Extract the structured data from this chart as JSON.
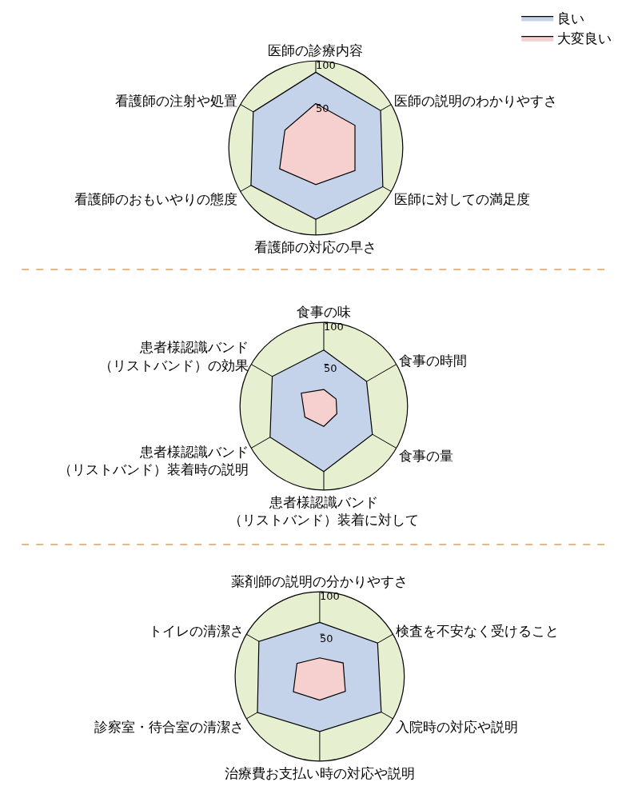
{
  "chart_data": [
    {
      "type": "radar",
      "categories": [
        "医師の診療内容",
        "医師の説明のわかりやすさ",
        "医師に対しての満足度",
        "看護師の対応の早さ",
        "看護師のおもいやりの態度",
        "看護師の注射や処置"
      ],
      "ylim": [
        0,
        100
      ],
      "yticks": [
        50,
        100
      ],
      "legend": "top right",
      "series": [
        {
          "name": "良い",
          "color": "#c5d3ea",
          "values": [
            87,
            86,
            89,
            82,
            86,
            83
          ]
        },
        {
          "name": "大変良い",
          "color": "#f6cfcf",
          "values": [
            51,
            52,
            52,
            42,
            48,
            41
          ]
        }
      ]
    },
    {
      "type": "radar",
      "categories": [
        "食事の味",
        "食事の時間",
        "食事の量",
        "患者様認識バンド（リストバンド）装着に対して",
        "患者様認識バンド（リストバンド）装着時の説明",
        "患者様認識バンド（リストバンド）の効果"
      ],
      "ylim": [
        0,
        100
      ],
      "yticks": [
        50,
        100
      ],
      "series": [
        {
          "color": "#c5d3ea",
          "values": [
            67,
            59,
            67,
            78,
            74,
            71
          ]
        },
        {
          "color": "#f6cfcf",
          "values": [
            20,
            17,
            18,
            24,
            26,
            31
          ]
        }
      ]
    },
    {
      "type": "radar",
      "categories": [
        "薬剤師の説明の分かりやすさ",
        "検査を不安なく受けること",
        "入院時の対応や説明",
        "治療費お支払い時の対応や説明",
        "診察室・待合室の清潔さ",
        "トイレの清潔さ"
      ],
      "ylim": [
        0,
        100
      ],
      "yticks": [
        50,
        100
      ],
      "series": [
        {
          "color": "#c5d3ea",
          "values": [
            64,
            79,
            84,
            65,
            85,
            83
          ]
        },
        {
          "color": "#f6cfcf",
          "values": [
            22,
            32,
            35,
            28,
            36,
            31
          ]
        }
      ]
    }
  ]
}
